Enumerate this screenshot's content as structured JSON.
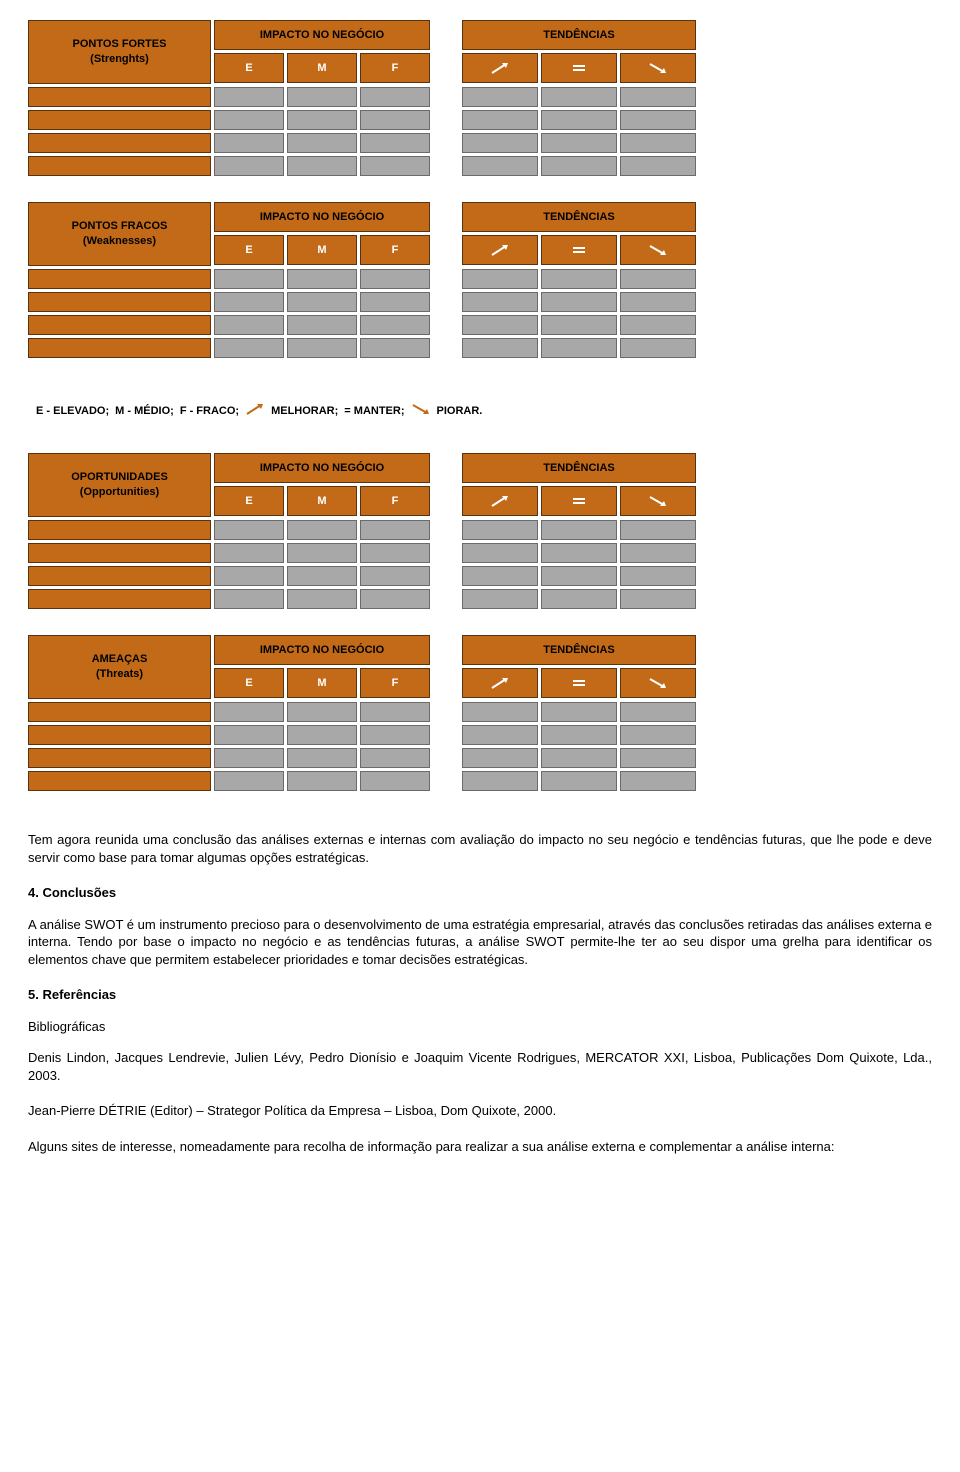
{
  "colors": {
    "orange": "#c26a18",
    "orange_dark_edge": "#5a3410",
    "grey_cell": "#a8a8a8",
    "grey_edge": "#6b6b6b",
    "white": "#ffffff",
    "black": "#000000"
  },
  "layout": {
    "label_col_width": 183,
    "impact_col_width": 70,
    "impact_group_width": 216,
    "trend_col_width": 76,
    "trend_group_width": 234,
    "gap_width": 26,
    "header_row_height": 30,
    "label_cell_height": 64,
    "data_row_height": 20,
    "data_rows_count": 4
  },
  "headers": {
    "impact": "IMPACTO NO NEGÓCIO",
    "trends": "TENDÊNCIAS",
    "impact_sub": [
      "E",
      "M",
      "F"
    ],
    "trend_sub_icons": [
      "arrow-up",
      "equals",
      "arrow-down"
    ]
  },
  "blocks": [
    {
      "title1": "PONTOS FORTES",
      "title2": "(Strenghts)"
    },
    {
      "title1": "PONTOS FRACOS",
      "title2": "(Weaknesses)"
    },
    {
      "title1": "OPORTUNIDADES",
      "title2": "(Opportunities)"
    },
    {
      "title1": "AMEAÇAS",
      "title2": "(Threats)"
    }
  ],
  "legend": {
    "e": "E - ELEVADO;",
    "m": "M - MÉDIO;",
    "f": "F - FRACO;",
    "up": "MELHORAR;",
    "eq": "= MANTER;",
    "down": "PIORAR."
  },
  "text": {
    "para1": "Tem agora reunida uma conclusão das análises externas e internas com avaliação do impacto no seu negócio e tendências futuras, que lhe pode e deve servir como base para tomar algumas opções estratégicas.",
    "h4": "4. Conclusões",
    "para2": "A análise SWOT é um instrumento precioso para o desenvolvimento de uma estratégia empresarial, através das conclusões retiradas das análises externa e interna. Tendo por base o impacto no negócio e as tendências futuras, a análise SWOT permite-lhe ter ao seu dispor uma grelha para identificar os elementos chave que permitem estabelecer prioridades e tomar decisões estratégicas.",
    "h5": "5. Referências",
    "sub5": "Bibliográficas",
    "ref1": "Denis Lindon, Jacques Lendrevie, Julien Lévy, Pedro Dionísio e Joaquim Vicente Rodrigues, MERCATOR XXI, Lisboa, Publicações Dom Quixote, Lda., 2003.",
    "ref2": "Jean-Pierre DÉTRIE (Editor) – Strategor Política da Empresa – Lisboa, Dom Quixote, 2000.",
    "para3": "Alguns sites de interesse, nomeadamente para recolha de informação para realizar a sua análise externa e complementar a análise interna:"
  }
}
